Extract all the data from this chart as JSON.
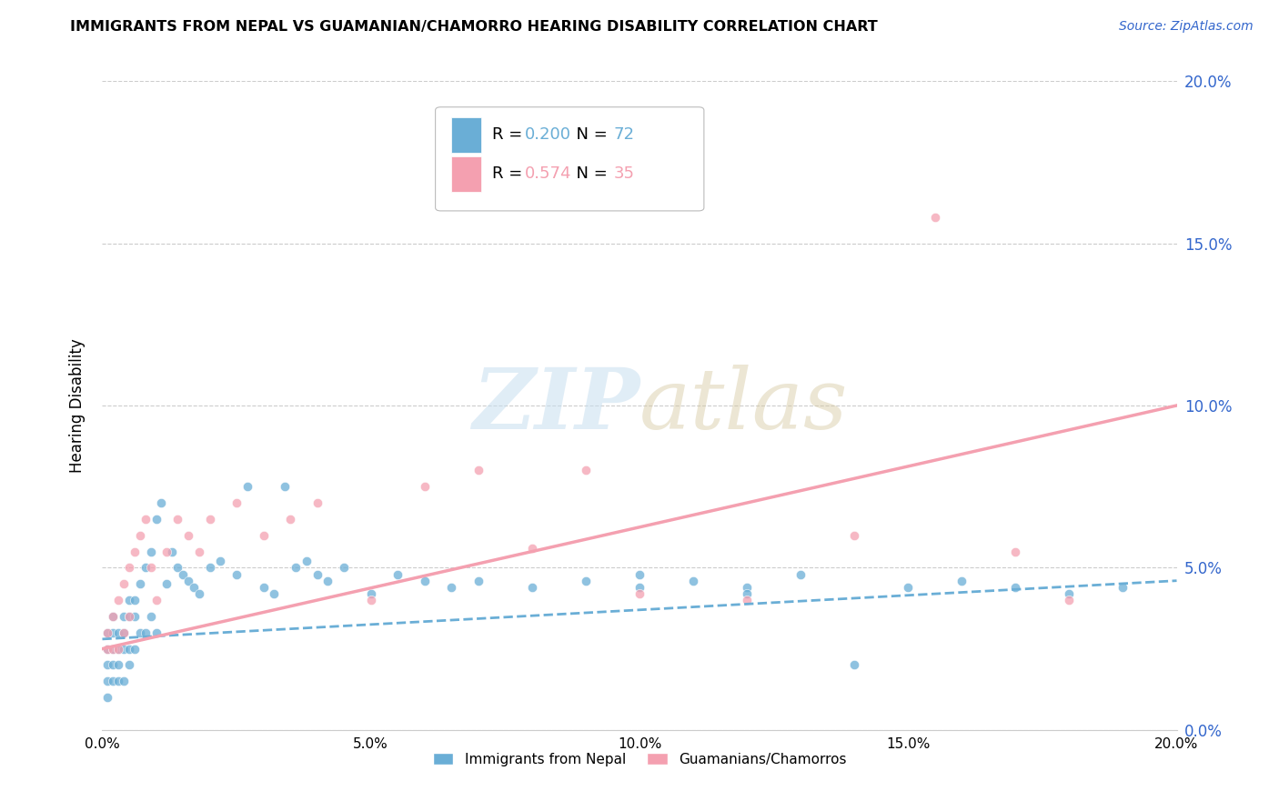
{
  "title": "IMMIGRANTS FROM NEPAL VS GUAMANIAN/CHAMORRO HEARING DISABILITY CORRELATION CHART",
  "source": "Source: ZipAtlas.com",
  "ylabel": "Hearing Disability",
  "xlim": [
    0.0,
    0.2
  ],
  "ylim": [
    0.0,
    0.2
  ],
  "nepal_color": "#6aaed6",
  "chamorro_color": "#f4a0b0",
  "nepal_R": 0.2,
  "nepal_N": 72,
  "chamorro_R": 0.574,
  "chamorro_N": 35,
  "nepal_trend_x": [
    0.0,
    0.2
  ],
  "nepal_trend_y": [
    0.028,
    0.046
  ],
  "chamorro_trend_x": [
    0.0,
    0.2
  ],
  "chamorro_trend_y": [
    0.025,
    0.1
  ],
  "watermark_zip": "ZIP",
  "watermark_atlas": "atlas",
  "background_color": "#ffffff",
  "nepal_scatter_x": [
    0.001,
    0.001,
    0.001,
    0.001,
    0.001,
    0.002,
    0.002,
    0.002,
    0.002,
    0.002,
    0.003,
    0.003,
    0.003,
    0.003,
    0.004,
    0.004,
    0.004,
    0.004,
    0.005,
    0.005,
    0.005,
    0.005,
    0.006,
    0.006,
    0.006,
    0.007,
    0.007,
    0.008,
    0.008,
    0.009,
    0.009,
    0.01,
    0.01,
    0.011,
    0.012,
    0.013,
    0.014,
    0.015,
    0.016,
    0.017,
    0.018,
    0.02,
    0.022,
    0.025,
    0.027,
    0.03,
    0.032,
    0.034,
    0.036,
    0.038,
    0.04,
    0.042,
    0.045,
    0.05,
    0.055,
    0.06,
    0.065,
    0.07,
    0.08,
    0.09,
    0.1,
    0.11,
    0.12,
    0.13,
    0.14,
    0.15,
    0.16,
    0.17,
    0.18,
    0.19,
    0.1,
    0.12
  ],
  "nepal_scatter_y": [
    0.03,
    0.025,
    0.02,
    0.015,
    0.01,
    0.035,
    0.03,
    0.025,
    0.02,
    0.015,
    0.03,
    0.025,
    0.02,
    0.015,
    0.035,
    0.03,
    0.025,
    0.015,
    0.04,
    0.035,
    0.025,
    0.02,
    0.04,
    0.035,
    0.025,
    0.045,
    0.03,
    0.05,
    0.03,
    0.055,
    0.035,
    0.065,
    0.03,
    0.07,
    0.045,
    0.055,
    0.05,
    0.048,
    0.046,
    0.044,
    0.042,
    0.05,
    0.052,
    0.048,
    0.075,
    0.044,
    0.042,
    0.075,
    0.05,
    0.052,
    0.048,
    0.046,
    0.05,
    0.042,
    0.048,
    0.046,
    0.044,
    0.046,
    0.044,
    0.046,
    0.048,
    0.046,
    0.044,
    0.048,
    0.02,
    0.044,
    0.046,
    0.044,
    0.042,
    0.044,
    0.044,
    0.042
  ],
  "chamorro_scatter_x": [
    0.001,
    0.001,
    0.002,
    0.002,
    0.003,
    0.003,
    0.004,
    0.004,
    0.005,
    0.005,
    0.006,
    0.007,
    0.008,
    0.009,
    0.01,
    0.012,
    0.014,
    0.016,
    0.018,
    0.02,
    0.025,
    0.03,
    0.035,
    0.04,
    0.05,
    0.06,
    0.07,
    0.08,
    0.09,
    0.1,
    0.12,
    0.14,
    0.155,
    0.17,
    0.18
  ],
  "chamorro_scatter_y": [
    0.03,
    0.025,
    0.035,
    0.025,
    0.04,
    0.025,
    0.045,
    0.03,
    0.05,
    0.035,
    0.055,
    0.06,
    0.065,
    0.05,
    0.04,
    0.055,
    0.065,
    0.06,
    0.055,
    0.065,
    0.07,
    0.06,
    0.065,
    0.07,
    0.04,
    0.075,
    0.08,
    0.056,
    0.08,
    0.042,
    0.04,
    0.06,
    0.158,
    0.055,
    0.04
  ]
}
